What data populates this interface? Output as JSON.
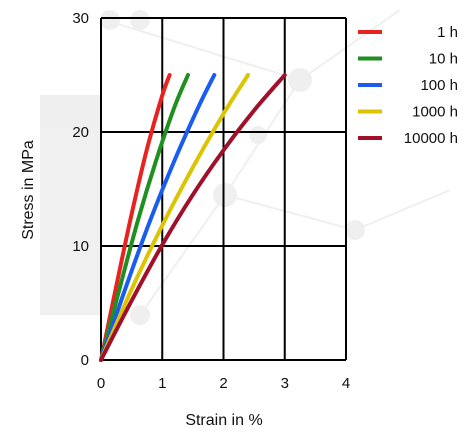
{
  "chart_data": {
    "type": "line",
    "title": "",
    "xlabel": "Strain in %",
    "ylabel": "Stress in MPa",
    "xlim": [
      0,
      4
    ],
    "ylim": [
      0,
      30
    ],
    "xticks": [
      0,
      1,
      2,
      3,
      4
    ],
    "yticks": [
      0,
      10,
      20,
      30
    ],
    "xtick_labels": [
      "0",
      "1",
      "2",
      "3",
      "4"
    ],
    "ytick_labels": [
      "0",
      "10",
      "20",
      "30"
    ],
    "grid": true,
    "legend_position": "top-right, outside plot",
    "series": [
      {
        "name": "1 h",
        "color": "#e8231f",
        "x": [
          0,
          0.25,
          0.5,
          0.75,
          1.0,
          1.12
        ],
        "y": [
          0,
          6.5,
          12.8,
          18.5,
          23.2,
          25
        ]
      },
      {
        "name": "10 h",
        "color": "#1f8f1f",
        "x": [
          0,
          0.3,
          0.6,
          0.9,
          1.2,
          1.42
        ],
        "y": [
          0,
          6.2,
          12.2,
          17.5,
          22.2,
          25
        ]
      },
      {
        "name": "100 h",
        "color": "#1a5cf0",
        "x": [
          0,
          0.4,
          0.8,
          1.2,
          1.6,
          1.85
        ],
        "y": [
          0,
          6.3,
          12.2,
          17.5,
          22.3,
          25
        ]
      },
      {
        "name": "1000 h",
        "color": "#ddc400",
        "x": [
          0,
          0.5,
          1.0,
          1.5,
          2.0,
          2.4
        ],
        "y": [
          0,
          6.2,
          11.8,
          16.9,
          21.6,
          25
        ]
      },
      {
        "name": "10000 h",
        "color": "#a0102a",
        "x": [
          0,
          0.5,
          1.0,
          1.5,
          2.0,
          2.5,
          3.0
        ],
        "y": [
          0,
          5.2,
          10.1,
          14.5,
          18.4,
          21.9,
          25
        ]
      }
    ]
  }
}
